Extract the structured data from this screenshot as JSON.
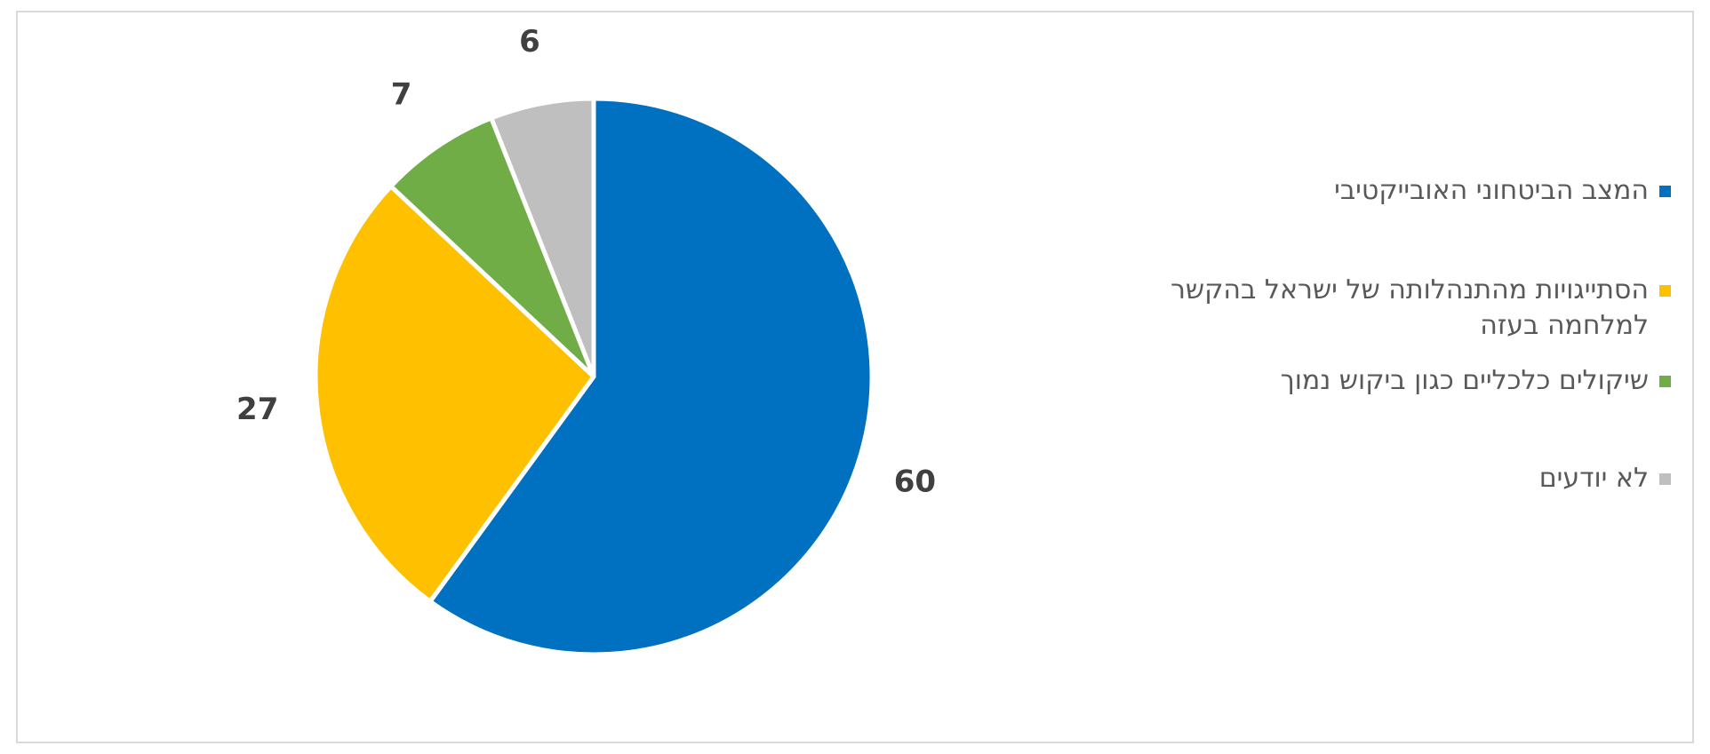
{
  "chart_data": {
    "type": "pie",
    "title": "",
    "legend_position": "right",
    "start_angle_deg": 0,
    "direction": "clockwise",
    "slices": [
      {
        "label": "המצב הביטחוני האובייקטיבי",
        "value": 60,
        "color": "#0070C0"
      },
      {
        "label": "הסתייגויות מהתנהלותה של ישראל בהקשר למלחמה בעזה",
        "value": 27,
        "color": "#FFC000"
      },
      {
        "label": "שיקולים כלכליים כגון ביקוש נמוך",
        "value": 7,
        "color": "#70AD47"
      },
      {
        "label": "לא יודעים",
        "value": 6,
        "color": "#BFBFBF"
      }
    ]
  }
}
